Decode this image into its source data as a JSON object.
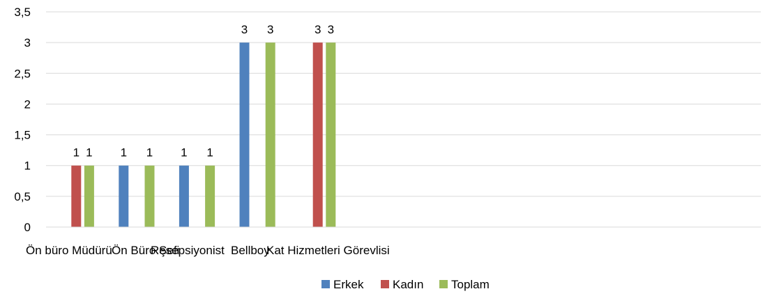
{
  "chart_data": {
    "type": "bar",
    "categories": [
      "Ön büro Müdürü",
      "Ön Büro Şefi",
      "Resepsiyonist",
      "Bellboy",
      "Kat Hizmetleri Görevlisi"
    ],
    "series": [
      {
        "name": "Erkek",
        "color": "#4F81BD",
        "values": [
          0,
          1,
          1,
          3,
          0
        ]
      },
      {
        "name": "Kadın",
        "color": "#C0504D",
        "values": [
          1,
          0,
          0,
          0,
          3
        ]
      },
      {
        "name": "Toplam",
        "color": "#9BBB59",
        "values": [
          1,
          1,
          1,
          3,
          3
        ]
      }
    ],
    "data_labels": [
      [
        "",
        "1",
        "1",
        "3",
        ""
      ],
      [
        "1",
        "",
        "",
        "",
        "3"
      ],
      [
        "1",
        "1",
        "1",
        "3",
        "3"
      ]
    ],
    "yticks": [
      "0",
      "0,5",
      "1",
      "1,5",
      "2",
      "2,5",
      "3",
      "3,5"
    ],
    "ylim": [
      0,
      3.5
    ],
    "grid": true,
    "legend_position": "bottom",
    "title": "",
    "xlabel": "",
    "ylabel": ""
  }
}
